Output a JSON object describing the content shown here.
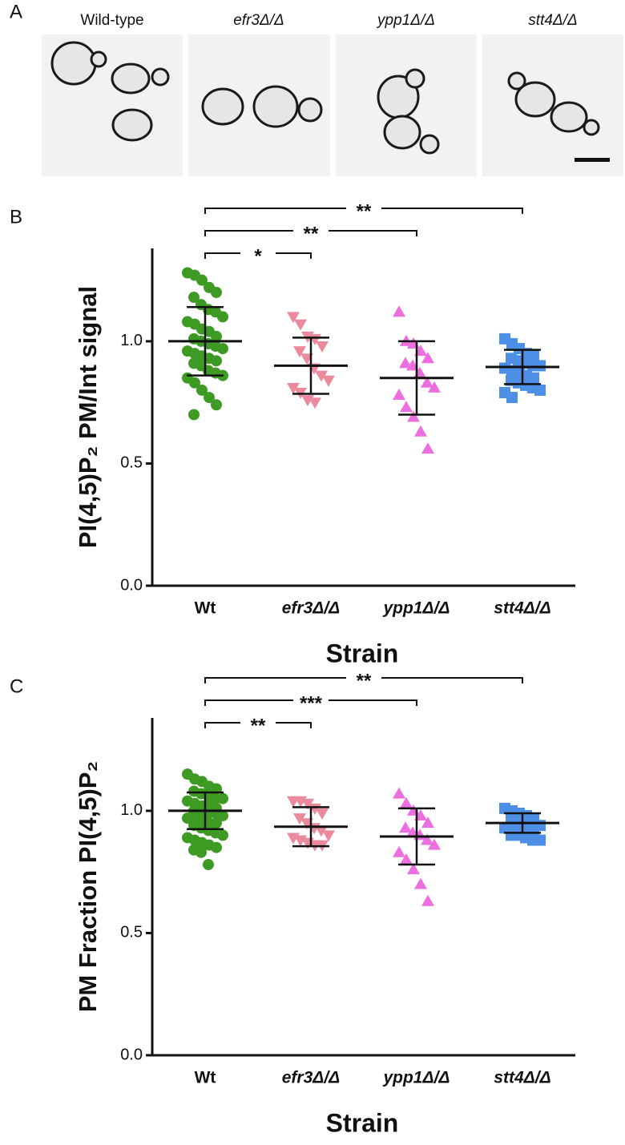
{
  "panel_a": {
    "label": "A",
    "images": [
      "Wild-type",
      "efr3Δ/Δ",
      "ypp1Δ/Δ",
      "stt4Δ/Δ"
    ]
  },
  "chart_data": [
    {
      "type": "strip",
      "label": "B",
      "y_label": "PI(4,5)P₂ PM/Int signal",
      "x_label": "Strain",
      "categories": [
        "Wt",
        "efr3Δ/Δ",
        "ypp1Δ/Δ",
        "stt4Δ/Δ"
      ],
      "ylim": [
        0,
        1.38
      ],
      "yticks": [
        {
          "value": 0,
          "label": "0.0"
        },
        {
          "value": 0.5,
          "label": "0.5"
        },
        {
          "value": 1,
          "label": "1.0"
        }
      ],
      "significance": [
        "*",
        "**",
        "**"
      ],
      "groups": [
        {
          "color": "#3d9a23",
          "marker": "circle",
          "mean": 1.0,
          "error": 0.14,
          "values": [
            1.28,
            1.27,
            1.25,
            1.22,
            1.2,
            1.18,
            1.15,
            1.13,
            1.12,
            1.1,
            1.08,
            1.07,
            1.05,
            1.04,
            1.02,
            1.01,
            1.0,
            0.99,
            0.98,
            0.97,
            0.96,
            0.95,
            0.94,
            0.93,
            0.92,
            0.91,
            0.9,
            0.88,
            0.87,
            0.86,
            0.85,
            0.83,
            0.8,
            0.77,
            0.74,
            0.7
          ]
        },
        {
          "color": "#eb8a9c",
          "marker": "triangle-down",
          "mean": 0.9,
          "error": 0.115,
          "values": [
            1.1,
            1.07,
            1.02,
            1.01,
            0.98,
            0.96,
            0.93,
            0.89,
            0.86,
            0.84,
            0.81,
            0.79,
            0.76,
            0.75
          ]
        },
        {
          "color": "#ec6fe0",
          "marker": "triangle-up",
          "mean": 0.85,
          "error": 0.15,
          "values": [
            1.12,
            1.0,
            0.99,
            0.96,
            0.93,
            0.91,
            0.9,
            0.87,
            0.83,
            0.81,
            0.78,
            0.73,
            0.69,
            0.63,
            0.56
          ]
        },
        {
          "color": "#4d8fe6",
          "marker": "square",
          "mean": 0.895,
          "error": 0.07,
          "values": [
            1.01,
            0.99,
            0.97,
            0.95,
            0.94,
            0.93,
            0.92,
            0.91,
            0.9,
            0.9,
            0.89,
            0.88,
            0.87,
            0.86,
            0.85,
            0.84,
            0.83,
            0.82,
            0.81,
            0.8,
            0.79,
            0.77
          ]
        }
      ]
    },
    {
      "type": "strip",
      "label": "C",
      "y_label": "PM Fraction PI(4,5)P₂",
      "x_label": "Strain",
      "categories": [
        "Wt",
        "efr3Δ/Δ",
        "ypp1Δ/Δ",
        "stt4Δ/Δ"
      ],
      "ylim": [
        0,
        1.38
      ],
      "yticks": [
        {
          "value": 0,
          "label": "0.0"
        },
        {
          "value": 0.5,
          "label": "0.5"
        },
        {
          "value": 1,
          "label": "1.0"
        }
      ],
      "significance": [
        "**",
        "***",
        "**"
      ],
      "groups": [
        {
          "color": "#3d9a23",
          "marker": "circle",
          "mean": 1.0,
          "error": 0.075,
          "values": [
            1.15,
            1.13,
            1.12,
            1.1,
            1.09,
            1.08,
            1.07,
            1.06,
            1.05,
            1.05,
            1.04,
            1.03,
            1.02,
            1.02,
            1.01,
            1.0,
            1.0,
            0.99,
            0.99,
            0.98,
            0.97,
            0.97,
            0.96,
            0.95,
            0.95,
            0.94,
            0.93,
            0.92,
            0.91,
            0.9,
            0.89,
            0.88,
            0.87,
            0.86,
            0.85,
            0.84,
            0.83,
            0.78
          ]
        },
        {
          "color": "#eb8a9c",
          "marker": "triangle-down",
          "mean": 0.935,
          "error": 0.08,
          "values": [
            1.04,
            1.04,
            1.03,
            1.01,
            0.99,
            0.97,
            0.95,
            0.93,
            0.92,
            0.9,
            0.89,
            0.88,
            0.87,
            0.86,
            0.86
          ]
        },
        {
          "color": "#ec6fe0",
          "marker": "triangle-up",
          "mean": 0.895,
          "error": 0.115,
          "values": [
            1.07,
            1.03,
            1.0,
            0.98,
            0.95,
            0.93,
            0.91,
            0.9,
            0.88,
            0.86,
            0.83,
            0.8,
            0.76,
            0.7,
            0.63
          ]
        },
        {
          "color": "#4d8fe6",
          "marker": "square",
          "mean": 0.95,
          "error": 0.04,
          "values": [
            1.01,
            1.0,
            0.99,
            0.98,
            0.97,
            0.97,
            0.96,
            0.95,
            0.95,
            0.94,
            0.93,
            0.93,
            0.92,
            0.91,
            0.91,
            0.9,
            0.9,
            0.89,
            0.88,
            0.88
          ]
        }
      ]
    }
  ]
}
